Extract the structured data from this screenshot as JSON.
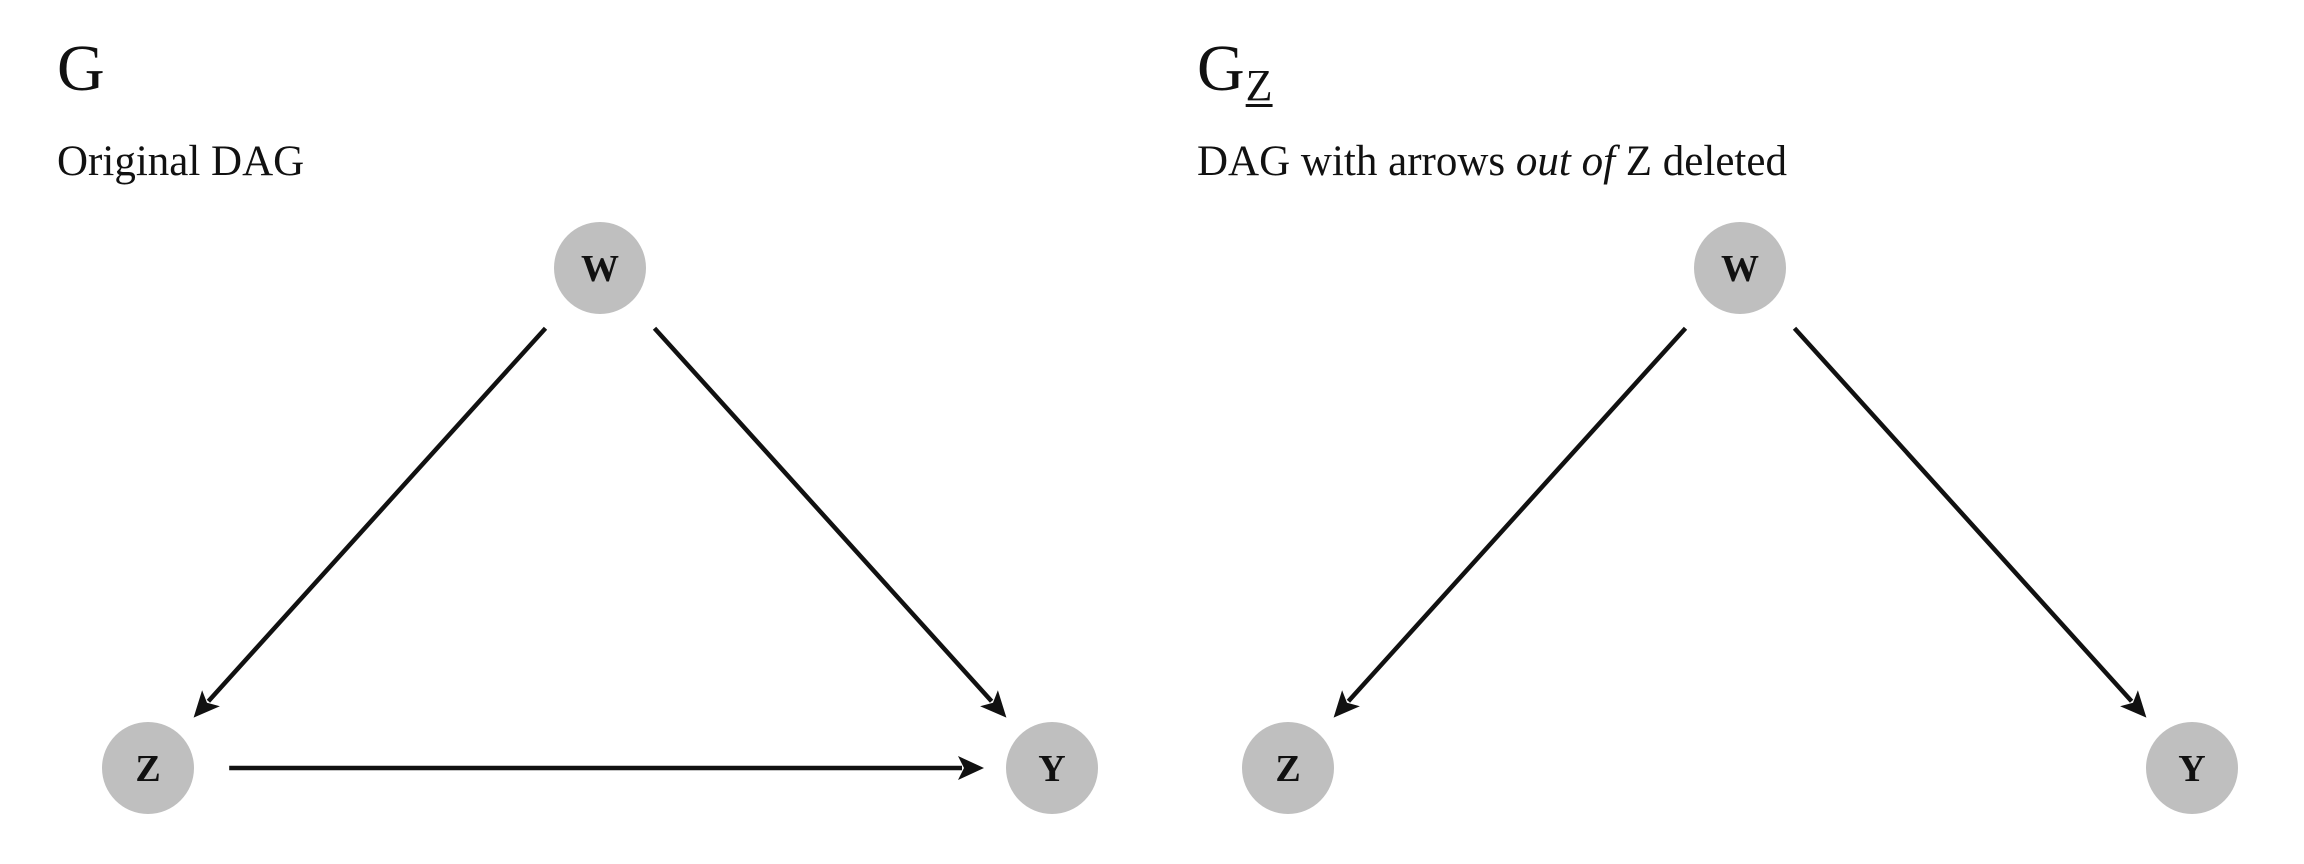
{
  "panels": [
    {
      "id": "original",
      "title": "G",
      "title_subscript": "",
      "caption_parts": [
        "Original DAG",
        "",
        ""
      ],
      "nodes": [
        "W",
        "Z",
        "Y"
      ],
      "edges": [
        {
          "from": "W",
          "to": "Z"
        },
        {
          "from": "W",
          "to": "Y"
        },
        {
          "from": "Z",
          "to": "Y"
        }
      ]
    },
    {
      "id": "mutilated",
      "title": "G",
      "title_subscript": "Z",
      "caption_parts": [
        "DAG with arrows ",
        "out of",
        " Z deleted"
      ],
      "nodes": [
        "W",
        "Z",
        "Y"
      ],
      "edges": [
        {
          "from": "W",
          "to": "Z"
        },
        {
          "from": "W",
          "to": "Y"
        }
      ]
    }
  ],
  "colors": {
    "node_fill": "#bfbfbf",
    "edge": "#111111",
    "text": "#111111"
  }
}
